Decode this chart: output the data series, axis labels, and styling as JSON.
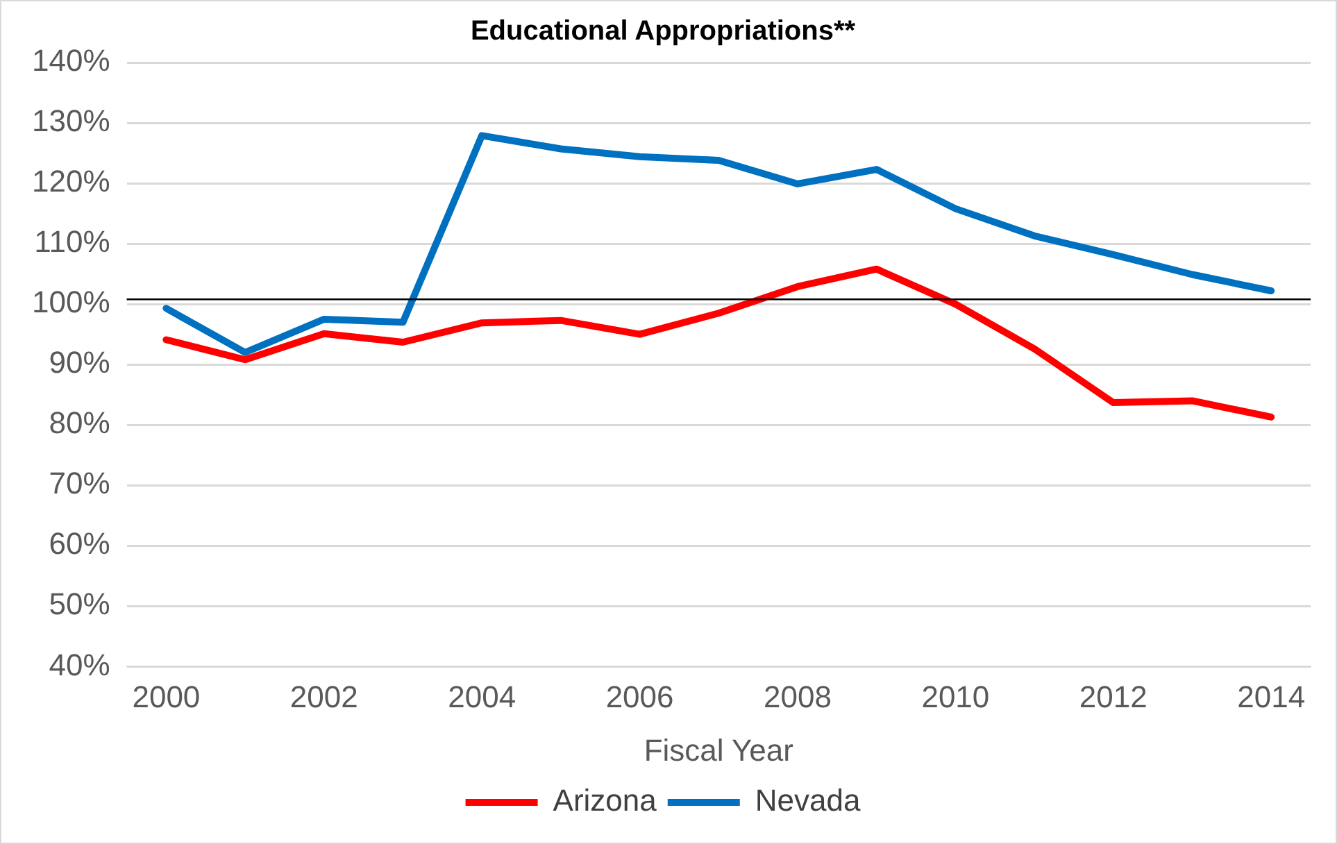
{
  "chart_data": {
    "type": "line",
    "title": "Educational Appropriations**",
    "xlabel": "Fiscal Year",
    "categories": [
      "2000",
      null,
      "2002",
      null,
      "2004",
      null,
      "2006",
      null,
      "2008",
      null,
      "2010",
      null,
      "2012",
      null,
      "2014"
    ],
    "series": [
      {
        "name": "Arizona",
        "color": "#ff0000",
        "values": [
          94.1,
          90.8,
          95.1,
          93.7,
          96.9,
          97.3,
          95.0,
          98.5,
          102.9,
          105.8,
          100.0,
          92.6,
          83.7,
          84.0,
          81.3
        ]
      },
      {
        "name": "Nevada",
        "color": "#0070c0",
        "values": [
          99.3,
          92.0,
          97.5,
          97.0,
          127.9,
          125.7,
          124.4,
          123.8,
          119.9,
          122.3,
          115.8,
          111.3,
          108.2,
          104.9,
          102.2
        ]
      }
    ],
    "ylim": [
      40,
      140
    ],
    "yticks": [
      {
        "value": 40,
        "label": "40%"
      },
      {
        "value": 50,
        "label": "50%"
      },
      {
        "value": 60,
        "label": "60%"
      },
      {
        "value": 70,
        "label": "70%"
      },
      {
        "value": 80,
        "label": "80%"
      },
      {
        "value": 90,
        "label": "90%"
      },
      {
        "value": 100,
        "label": "100%"
      },
      {
        "value": 110,
        "label": "110%"
      },
      {
        "value": 120,
        "label": "120%"
      },
      {
        "value": 130,
        "label": "130%"
      },
      {
        "value": 140,
        "label": "140%"
      }
    ],
    "ref_lines": [
      {
        "axis": "y",
        "value": 100.8,
        "color": "#000000"
      }
    ],
    "grid": "y",
    "legend": "bottom",
    "marker": "none",
    "line_style": "solid"
  }
}
